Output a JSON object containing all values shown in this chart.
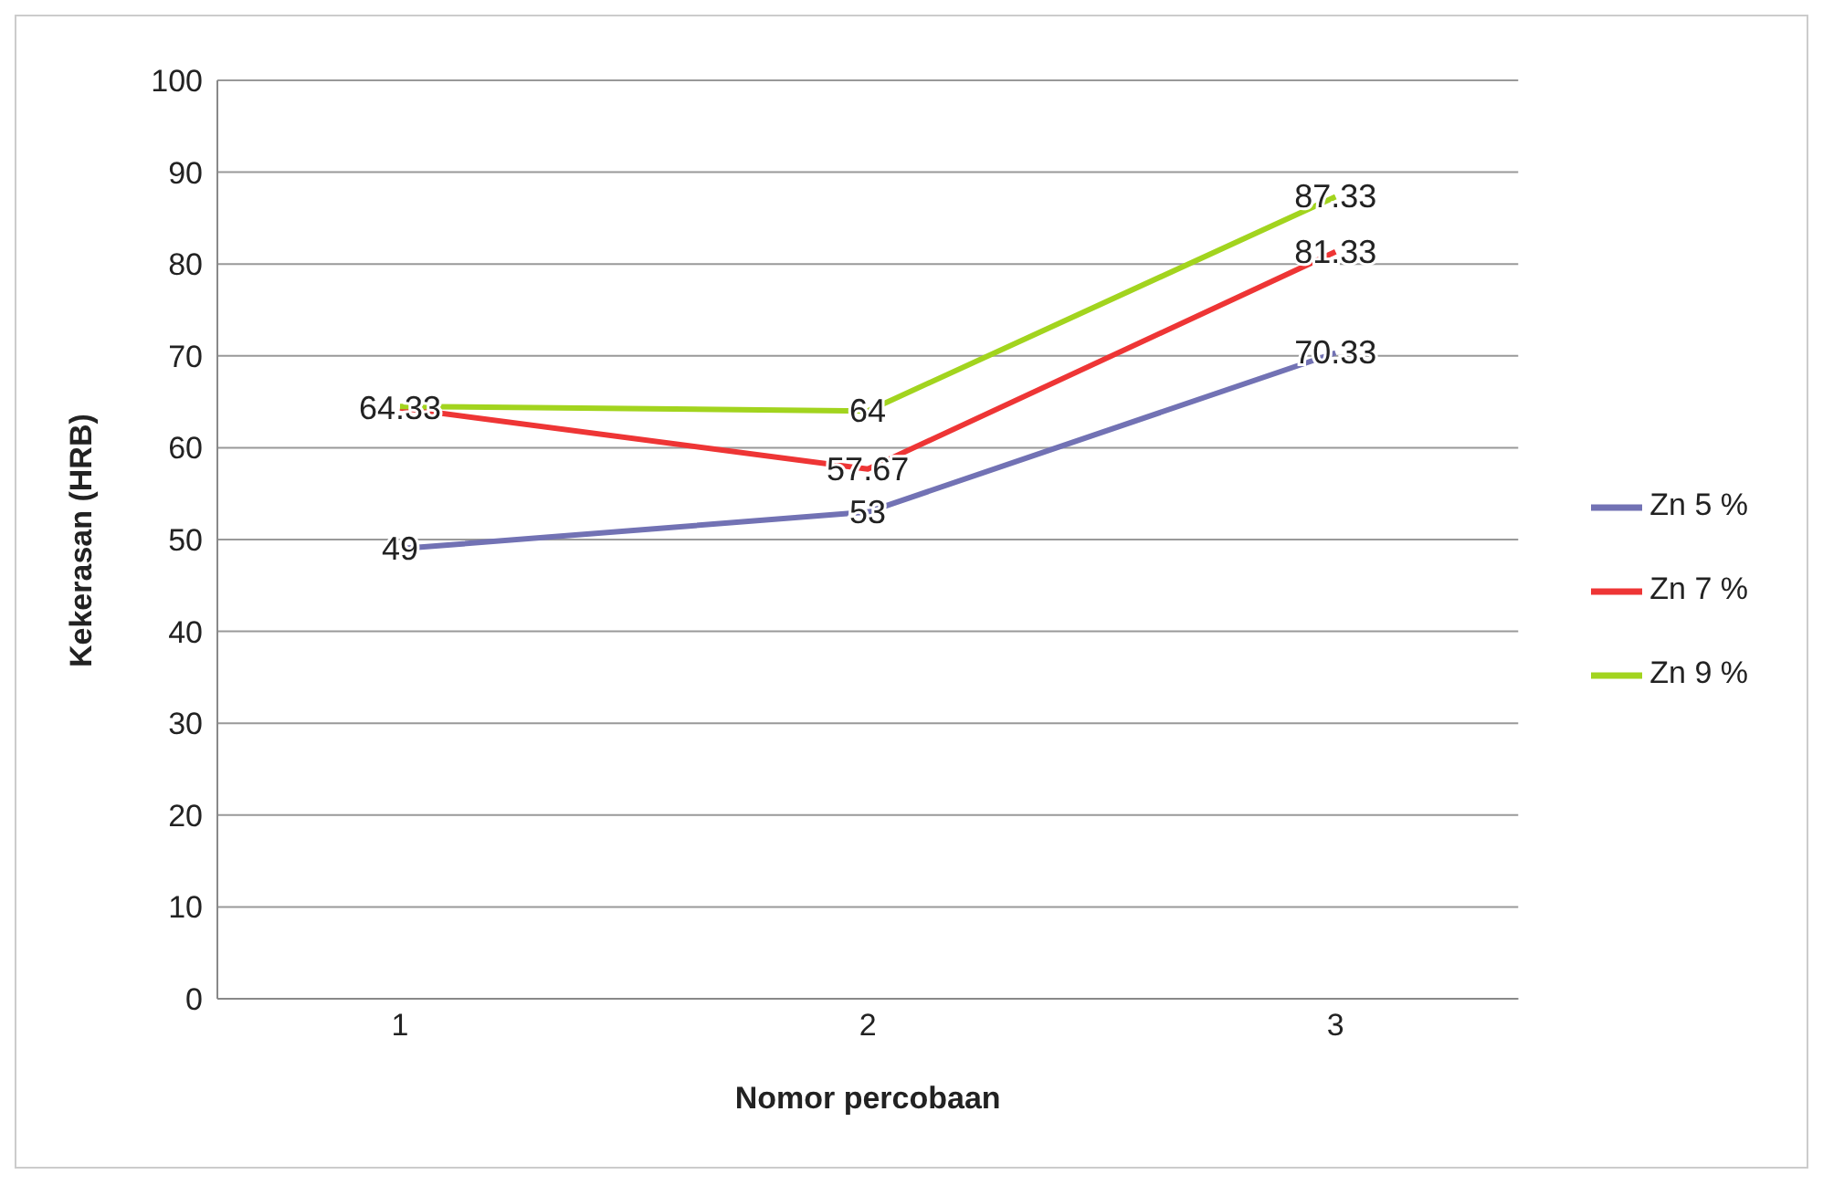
{
  "chart_data": {
    "type": "line",
    "xlabel": "Nomor percobaan",
    "ylabel": "Kekerasan (HRB)",
    "categories": [
      "1",
      "2",
      "3"
    ],
    "series": [
      {
        "name": "Zn 5 %",
        "color": "#7272b4",
        "values": [
          49,
          53,
          70.33
        ],
        "value_labels": [
          "49",
          "53",
          "70.33"
        ]
      },
      {
        "name": "Zn 7 %",
        "color": "#ee3535",
        "values": [
          64.33,
          57.67,
          81.33
        ],
        "value_labels": [
          "64.33",
          "57.67",
          "81.33"
        ]
      },
      {
        "name": "Zn 9 %",
        "color": "#a2d41e",
        "values": [
          64.5,
          64,
          87.33
        ],
        "value_labels": [
          null,
          "64",
          "87.33"
        ]
      }
    ],
    "ylim": [
      0,
      100
    ],
    "yticks": [
      0,
      10,
      20,
      30,
      40,
      50,
      60,
      70,
      80,
      90,
      100
    ],
    "grid": "y",
    "legend": "right",
    "marker": "none"
  }
}
